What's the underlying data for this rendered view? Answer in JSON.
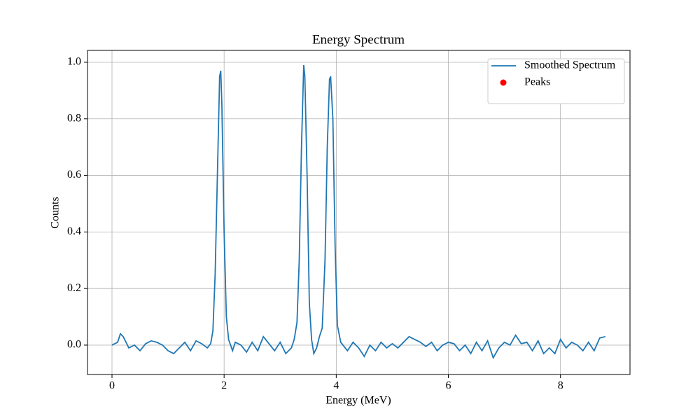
{
  "chart_data": {
    "type": "line",
    "title": "Energy Spectrum",
    "xlabel": "Energy (MeV)",
    "ylabel": "Counts",
    "xlim": [
      -0.437,
      9.24
    ],
    "ylim": [
      -0.104,
      1.042
    ],
    "xticks": [
      0,
      2,
      4,
      6,
      8
    ],
    "yticks": [
      {
        "value": 0,
        "label": "0.0"
      },
      0.2,
      0.4,
      0.6,
      0.8,
      {
        "value": 1,
        "label": "1.0"
      }
    ],
    "grid": true,
    "legend": "upper right",
    "series": [
      {
        "name": "Smoothed Spectrum",
        "type": "line",
        "color": "#1f77b4",
        "x": [
          0,
          0.1,
          0.15,
          0.2,
          0.3,
          0.4,
          0.5,
          0.6,
          0.7,
          0.8,
          0.9,
          1.0,
          1.1,
          1.2,
          1.3,
          1.4,
          1.5,
          1.6,
          1.7,
          1.76,
          1.8,
          1.84,
          1.88,
          1.92,
          1.94,
          1.96,
          2.0,
          2.04,
          2.08,
          2.15,
          2.2,
          2.3,
          2.4,
          2.5,
          2.6,
          2.7,
          2.8,
          2.9,
          3.0,
          3.1,
          3.2,
          3.25,
          3.3,
          3.34,
          3.38,
          3.42,
          3.44,
          3.48,
          3.52,
          3.56,
          3.6,
          3.65,
          3.7,
          3.75,
          3.8,
          3.84,
          3.88,
          3.9,
          3.94,
          3.98,
          4.02,
          4.08,
          4.2,
          4.3,
          4.4,
          4.5,
          4.6,
          4.7,
          4.8,
          4.9,
          5.0,
          5.1,
          5.2,
          5.3,
          5.4,
          5.5,
          5.6,
          5.7,
          5.8,
          5.9,
          6.0,
          6.1,
          6.2,
          6.3,
          6.4,
          6.5,
          6.6,
          6.7,
          6.8,
          6.9,
          7.0,
          7.1,
          7.2,
          7.3,
          7.4,
          7.5,
          7.6,
          7.7,
          7.8,
          7.9,
          8.0,
          8.1,
          8.2,
          8.3,
          8.4,
          8.5,
          8.6,
          8.7,
          8.8
        ],
        "values": [
          0,
          0.01,
          0.04,
          0.03,
          -0.01,
          0.0,
          -0.02,
          0.005,
          0.015,
          0.01,
          0.0,
          -0.02,
          -0.03,
          -0.01,
          0.01,
          -0.02,
          0.015,
          0.005,
          -0.01,
          0.005,
          0.05,
          0.25,
          0.6,
          0.95,
          0.97,
          0.85,
          0.4,
          0.1,
          0.02,
          -0.02,
          0.01,
          0.0,
          -0.025,
          0.01,
          -0.02,
          0.03,
          0.005,
          -0.02,
          0.01,
          -0.03,
          -0.01,
          0.02,
          0.08,
          0.3,
          0.7,
          0.99,
          0.95,
          0.6,
          0.15,
          0.02,
          -0.03,
          -0.01,
          0.03,
          0.06,
          0.3,
          0.7,
          0.94,
          0.95,
          0.8,
          0.35,
          0.07,
          0.01,
          -0.02,
          0.01,
          -0.01,
          -0.04,
          0.0,
          -0.02,
          0.01,
          -0.01,
          0.005,
          -0.01,
          0.01,
          0.03,
          0.02,
          0.01,
          -0.005,
          0.01,
          -0.02,
          0.0,
          0.01,
          0.005,
          -0.02,
          0.0,
          -0.03,
          0.01,
          -0.02,
          0.015,
          -0.045,
          -0.01,
          0.01,
          0.0,
          0.035,
          0.005,
          0.01,
          -0.02,
          0.015,
          -0.03,
          -0.01,
          -0.03,
          0.02,
          -0.01,
          0.01,
          0.0,
          -0.02,
          0.01,
          -0.02,
          0.025,
          0.03
        ]
      },
      {
        "name": "Peaks",
        "type": "scatter",
        "color": "#ff0000",
        "x": [],
        "values": []
      }
    ]
  }
}
